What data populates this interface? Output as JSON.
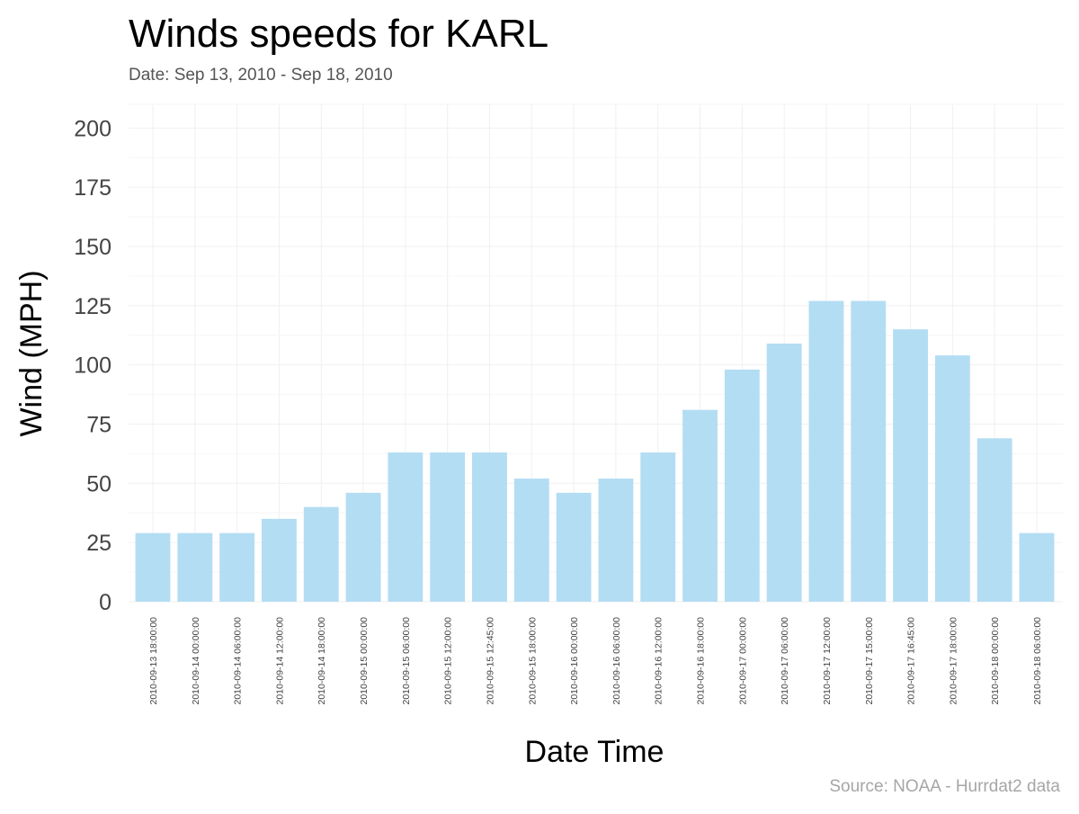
{
  "chart_data": {
    "type": "bar",
    "title": "Winds speeds for KARL",
    "subtitle": "Date:  Sep 13, 2010 - Sep 18, 2010",
    "caption": "Source: NOAA - Hurrdat2 data",
    "xlabel": "Date Time",
    "ylabel": "Wind (MPH)",
    "ylim": [
      0,
      210
    ],
    "yticks": [
      0,
      25,
      50,
      75,
      100,
      125,
      150,
      175,
      200
    ],
    "grid": true,
    "categories": [
      "2010-09-13 18:00:00",
      "2010-09-14 00:00:00",
      "2010-09-14 06:00:00",
      "2010-09-14 12:00:00",
      "2010-09-14 18:00:00",
      "2010-09-15 00:00:00",
      "2010-09-15 06:00:00",
      "2010-09-15 12:00:00",
      "2010-09-15 12:45:00",
      "2010-09-15 18:00:00",
      "2010-09-16 00:00:00",
      "2010-09-16 06:00:00",
      "2010-09-16 12:00:00",
      "2010-09-16 18:00:00",
      "2010-09-17 00:00:00",
      "2010-09-17 06:00:00",
      "2010-09-17 12:00:00",
      "2010-09-17 15:00:00",
      "2010-09-17 16:45:00",
      "2010-09-17 18:00:00",
      "2010-09-18 00:00:00",
      "2010-09-18 06:00:00"
    ],
    "values": [
      29,
      29,
      29,
      35,
      40,
      46,
      63,
      63,
      63,
      52,
      46,
      52,
      63,
      81,
      98,
      109,
      127,
      127,
      115,
      104,
      69,
      29
    ],
    "colors": {
      "bar": "#b3ddf3",
      "grid": "#f0f0f0",
      "axis_text": "#444444",
      "title": "#000000",
      "subtitle": "#555555",
      "caption": "#a6a6a6"
    }
  }
}
